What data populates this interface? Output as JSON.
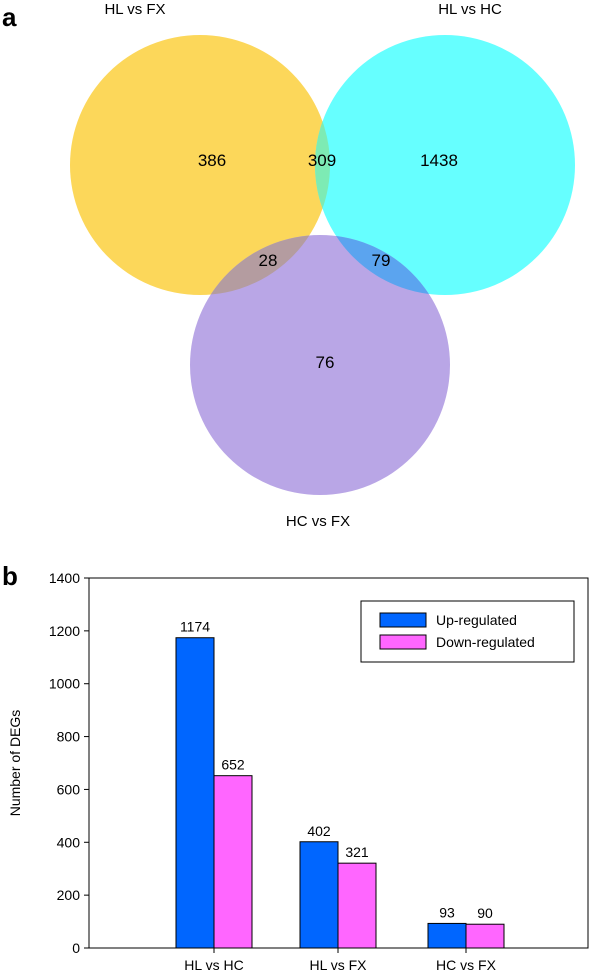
{
  "panels": {
    "a": "a",
    "b": "b"
  },
  "chart_data": [
    {
      "type": "venn",
      "sets": [
        {
          "name": "HL vs FX",
          "color": "#fcd75a"
        },
        {
          "name": "HL vs HC",
          "color": "#66ffff"
        },
        {
          "name": "HC vs FX",
          "color": "#b9a6e6"
        }
      ],
      "regions": {
        "only_HL_vs_FX": "386",
        "HL_vs_FX_and_HL_vs_HC": "309",
        "only_HL_vs_HC": "1438",
        "HL_vs_FX_and_HC_vs_FX": "28",
        "HL_vs_HC_and_HC_vs_FX": "79",
        "only_HC_vs_FX": "76"
      },
      "overlap_colors": {
        "ab": "#7debb4",
        "ac": "#b49ca0",
        "bc": "#5ba4ef"
      }
    },
    {
      "type": "bar",
      "categories": [
        "HL vs HC",
        "HL vs FX",
        "HC vs FX"
      ],
      "series": [
        {
          "name": "Up-regulated",
          "color": "#0066ff",
          "values": [
            1174,
            402,
            93
          ]
        },
        {
          "name": "Down-regulated",
          "color": "#ff66ff",
          "values": [
            652,
            321,
            90
          ]
        }
      ],
      "xlabel": "",
      "ylabel": "Number of DEGs",
      "ylim": [
        0,
        1400
      ],
      "yticks": [
        0,
        200,
        400,
        600,
        800,
        1000,
        1200,
        1400
      ],
      "legend_position": "top-right",
      "grid": false
    }
  ]
}
